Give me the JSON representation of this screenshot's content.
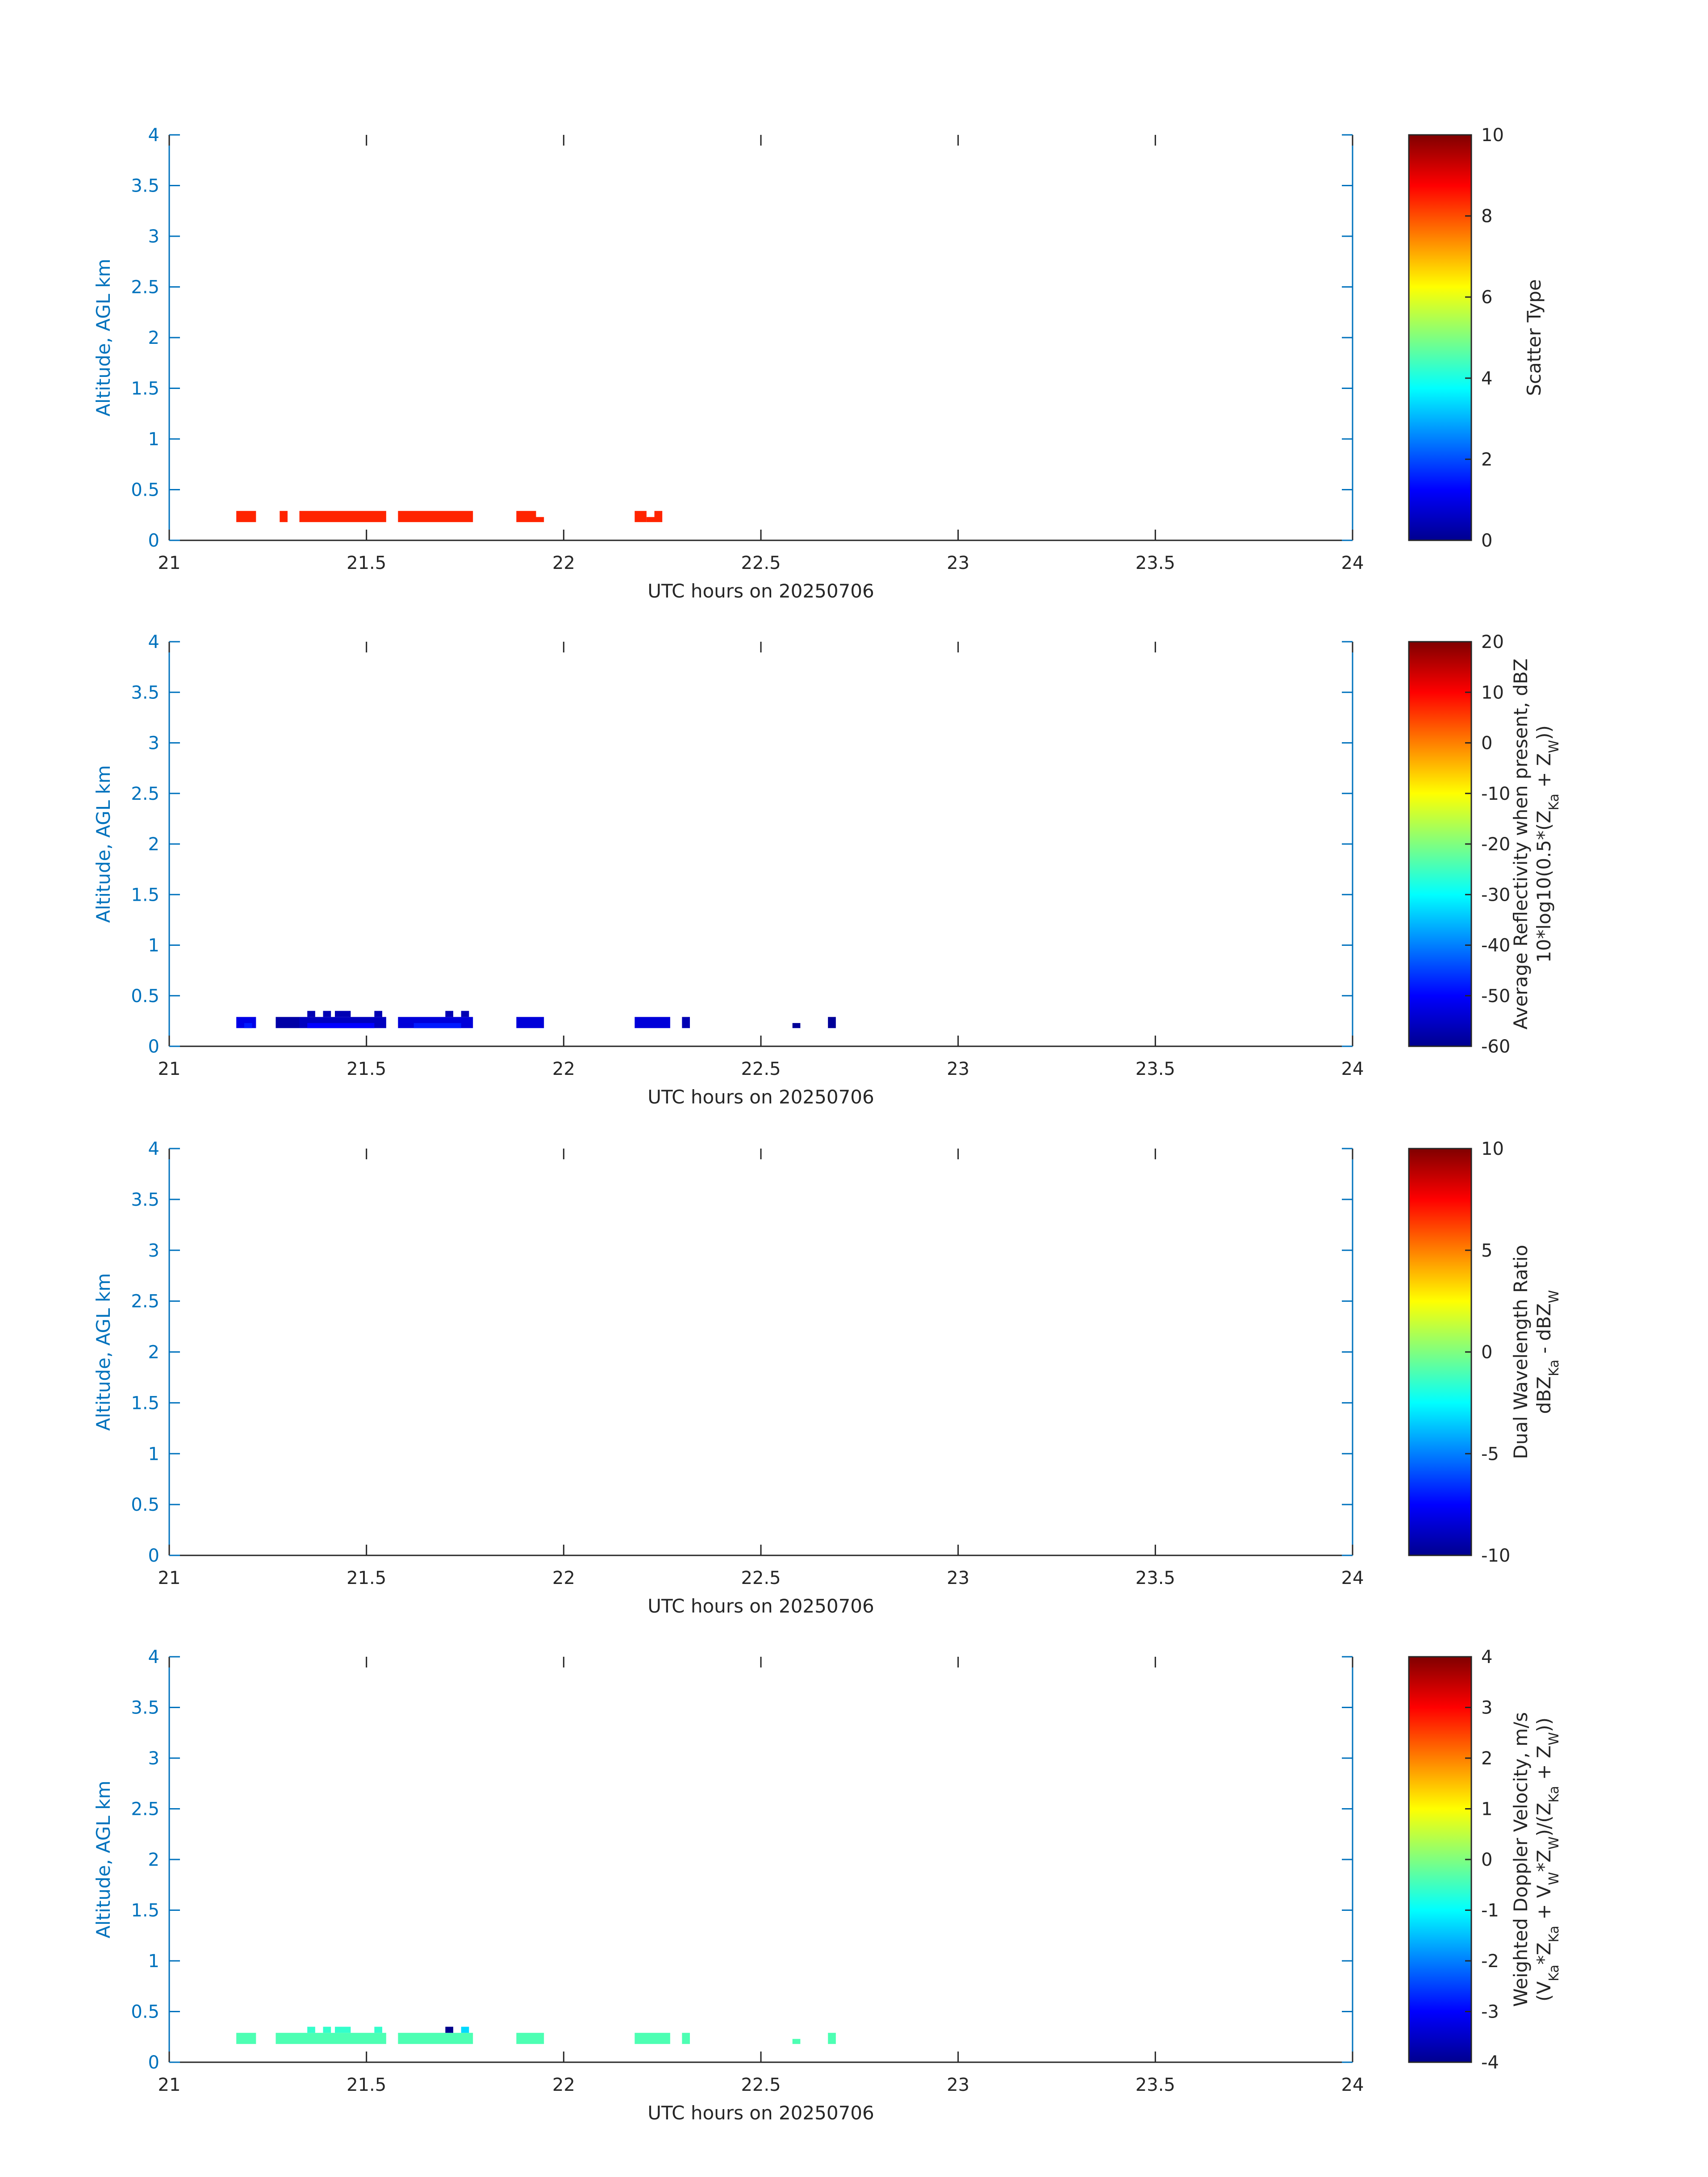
{
  "chart_data": [
    {
      "type": "heatmap",
      "xlabel": "UTC hours on 20250706",
      "ylabel": "Altitude, AGL km",
      "xlim": [
        21,
        24
      ],
      "ylim": [
        0,
        4
      ],
      "xticks": [
        "21",
        "21.5",
        "22",
        "22.5",
        "23",
        "23.5",
        "24"
      ],
      "yticks": [
        "0",
        "0.5",
        "1",
        "1.5",
        "2",
        "2.5",
        "3",
        "3.5",
        "4"
      ],
      "colorbar": {
        "label_lines": [
          "Scatter Type"
        ],
        "range": [
          0,
          10
        ],
        "ticks": [
          "0",
          "2",
          "4",
          "6",
          "8",
          "10"
        ],
        "colormap": "jet"
      },
      "cells": [
        {
          "x0": 21.17,
          "x1": 21.22,
          "y0": 0.18,
          "y1": 0.29,
          "value": 8.4
        },
        {
          "x0": 21.28,
          "x1": 21.3,
          "y0": 0.18,
          "y1": 0.29,
          "value": 8.4
        },
        {
          "x0": 21.33,
          "x1": 21.55,
          "y0": 0.18,
          "y1": 0.29,
          "value": 8.4
        },
        {
          "x0": 21.58,
          "x1": 21.77,
          "y0": 0.18,
          "y1": 0.29,
          "value": 8.4
        },
        {
          "x0": 21.88,
          "x1": 21.93,
          "y0": 0.18,
          "y1": 0.29,
          "value": 8.4
        },
        {
          "x0": 21.93,
          "x1": 21.95,
          "y0": 0.18,
          "y1": 0.23,
          "value": 8.4
        },
        {
          "x0": 22.18,
          "x1": 22.21,
          "y0": 0.18,
          "y1": 0.29,
          "value": 8.4
        },
        {
          "x0": 22.21,
          "x1": 22.23,
          "y0": 0.18,
          "y1": 0.23,
          "value": 8.4
        },
        {
          "x0": 22.23,
          "x1": 22.25,
          "y0": 0.18,
          "y1": 0.29,
          "value": 8.4
        }
      ]
    },
    {
      "type": "heatmap",
      "xlabel": "UTC hours on 20250706",
      "ylabel": "Altitude, AGL km",
      "xlim": [
        21,
        24
      ],
      "ylim": [
        0,
        4
      ],
      "xticks": [
        "21",
        "21.5",
        "22",
        "22.5",
        "23",
        "23.5",
        "24"
      ],
      "yticks": [
        "0",
        "0.5",
        "1",
        "1.5",
        "2",
        "2.5",
        "3",
        "3.5",
        "4"
      ],
      "colorbar": {
        "label_lines": [
          "Average Reflectivity when present, dBZ",
          "10*log10(0.5*(Z",
          "Ka",
          " + Z",
          "W",
          "))"
        ],
        "range": [
          -60,
          20
        ],
        "ticks": [
          "-60",
          "-50",
          "-40",
          "-30",
          "-20",
          "-10",
          "0",
          "10",
          "20"
        ],
        "colormap": "jet"
      },
      "cells": [
        {
          "x0": 21.17,
          "x1": 21.22,
          "y0": 0.18,
          "y1": 0.29,
          "value": -52
        },
        {
          "x0": 21.19,
          "x1": 21.21,
          "y0": 0.18,
          "y1": 0.23,
          "value": -48
        },
        {
          "x0": 21.27,
          "x1": 21.33,
          "y0": 0.18,
          "y1": 0.29,
          "value": -57
        },
        {
          "x0": 21.33,
          "x1": 21.55,
          "y0": 0.18,
          "y1": 0.29,
          "value": -55
        },
        {
          "x0": 21.35,
          "x1": 21.37,
          "y0": 0.29,
          "y1": 0.35,
          "value": -56
        },
        {
          "x0": 21.39,
          "x1": 21.41,
          "y0": 0.29,
          "y1": 0.35,
          "value": -56
        },
        {
          "x0": 21.42,
          "x1": 21.46,
          "y0": 0.29,
          "y1": 0.35,
          "value": -56
        },
        {
          "x0": 21.52,
          "x1": 21.54,
          "y0": 0.29,
          "y1": 0.35,
          "value": -56
        },
        {
          "x0": 21.35,
          "x1": 21.52,
          "y0": 0.18,
          "y1": 0.23,
          "value": -50
        },
        {
          "x0": 21.58,
          "x1": 21.77,
          "y0": 0.18,
          "y1": 0.29,
          "value": -53
        },
        {
          "x0": 21.7,
          "x1": 21.72,
          "y0": 0.29,
          "y1": 0.35,
          "value": -56
        },
        {
          "x0": 21.74,
          "x1": 21.76,
          "y0": 0.29,
          "y1": 0.35,
          "value": -56
        },
        {
          "x0": 21.62,
          "x1": 21.74,
          "y0": 0.18,
          "y1": 0.23,
          "value": -48
        },
        {
          "x0": 21.88,
          "x1": 21.95,
          "y0": 0.18,
          "y1": 0.29,
          "value": -53
        },
        {
          "x0": 22.18,
          "x1": 22.27,
          "y0": 0.18,
          "y1": 0.29,
          "value": -53
        },
        {
          "x0": 22.3,
          "x1": 22.32,
          "y0": 0.18,
          "y1": 0.29,
          "value": -56
        },
        {
          "x0": 22.58,
          "x1": 22.6,
          "y0": 0.18,
          "y1": 0.23,
          "value": -58
        },
        {
          "x0": 22.67,
          "x1": 22.69,
          "y0": 0.18,
          "y1": 0.29,
          "value": -58
        }
      ]
    },
    {
      "type": "heatmap",
      "xlabel": "UTC hours on 20250706",
      "ylabel": "Altitude, AGL km",
      "xlim": [
        21,
        24
      ],
      "ylim": [
        0,
        4
      ],
      "xticks": [
        "21",
        "21.5",
        "22",
        "22.5",
        "23",
        "23.5",
        "24"
      ],
      "yticks": [
        "0",
        "0.5",
        "1",
        "1.5",
        "2",
        "2.5",
        "3",
        "3.5",
        "4"
      ],
      "colorbar": {
        "label_lines": [
          "Dual Wavelength Ratio",
          "dBZ",
          "Ka",
          " - dBZ",
          "W"
        ],
        "range": [
          -10,
          10
        ],
        "ticks": [
          "-10",
          "-5",
          "0",
          "5",
          "10"
        ],
        "colormap": "jet"
      },
      "cells": []
    },
    {
      "type": "heatmap",
      "xlabel": "UTC hours on 20250706",
      "ylabel": "Altitude, AGL km",
      "xlim": [
        21,
        24
      ],
      "ylim": [
        0,
        4
      ],
      "xticks": [
        "21",
        "21.5",
        "22",
        "22.5",
        "23",
        "23.5",
        "24"
      ],
      "yticks": [
        "0",
        "0.5",
        "1",
        "1.5",
        "2",
        "2.5",
        "3",
        "3.5",
        "4"
      ],
      "colorbar": {
        "label_lines": [
          "Weighted Doppler Velocity, m/s",
          "(V",
          "Ka",
          "*Z",
          "Ka",
          " + V",
          "W",
          "*Z",
          "W",
          ")/(Z",
          "Ka",
          " + Z",
          "W",
          "))"
        ],
        "range": [
          -4,
          4
        ],
        "ticks": [
          "-4",
          "-3",
          "-2",
          "-1",
          "0",
          "1",
          "2",
          "3",
          "4"
        ],
        "colormap": "jet"
      },
      "cells": [
        {
          "x0": 21.17,
          "x1": 21.22,
          "y0": 0.18,
          "y1": 0.29,
          "value": -0.4
        },
        {
          "x0": 21.27,
          "x1": 21.55,
          "y0": 0.18,
          "y1": 0.29,
          "value": -0.4
        },
        {
          "x0": 21.35,
          "x1": 21.37,
          "y0": 0.29,
          "y1": 0.35,
          "value": -0.6
        },
        {
          "x0": 21.39,
          "x1": 21.41,
          "y0": 0.29,
          "y1": 0.35,
          "value": -0.6
        },
        {
          "x0": 21.42,
          "x1": 21.46,
          "y0": 0.29,
          "y1": 0.35,
          "value": -0.6
        },
        {
          "x0": 21.52,
          "x1": 21.54,
          "y0": 0.29,
          "y1": 0.35,
          "value": -0.6
        },
        {
          "x0": 21.58,
          "x1": 21.77,
          "y0": 0.18,
          "y1": 0.29,
          "value": -0.4
        },
        {
          "x0": 21.7,
          "x1": 21.72,
          "y0": 0.29,
          "y1": 0.35,
          "value": -3.9
        },
        {
          "x0": 21.74,
          "x1": 21.76,
          "y0": 0.29,
          "y1": 0.35,
          "value": -1.3
        },
        {
          "x0": 21.88,
          "x1": 21.95,
          "y0": 0.18,
          "y1": 0.29,
          "value": -0.4
        },
        {
          "x0": 22.18,
          "x1": 22.27,
          "y0": 0.18,
          "y1": 0.29,
          "value": -0.4
        },
        {
          "x0": 22.3,
          "x1": 22.32,
          "y0": 0.18,
          "y1": 0.29,
          "value": -0.4
        },
        {
          "x0": 22.58,
          "x1": 22.6,
          "y0": 0.18,
          "y1": 0.23,
          "value": -0.4
        },
        {
          "x0": 22.67,
          "x1": 22.69,
          "y0": 0.18,
          "y1": 0.29,
          "value": -0.4
        }
      ]
    }
  ],
  "colors": {
    "axis_color": "#0072bd",
    "text_color": "#262626"
  }
}
